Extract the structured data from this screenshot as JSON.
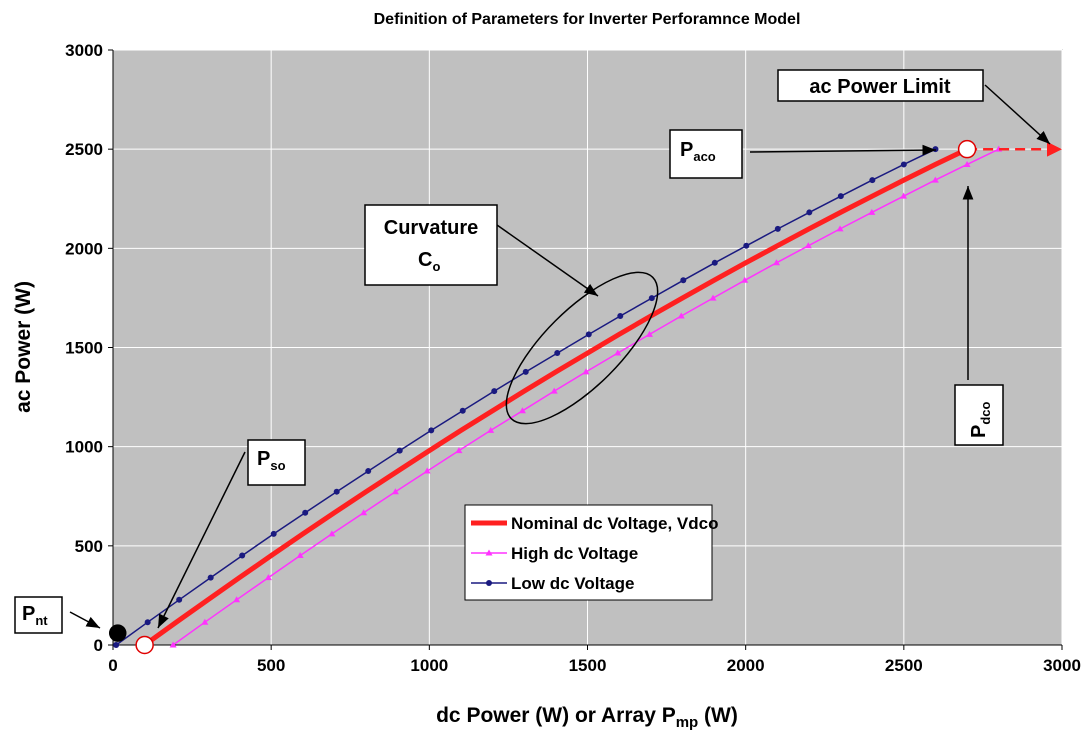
{
  "chart_data": {
    "type": "line",
    "title": "Definition of Parameters for Inverter Perforamnce Model",
    "x_label": {
      "main": "dc Power (W) or Array P",
      "sub": "mp",
      "tail": " (W)"
    },
    "y_label": "ac Power (W)",
    "xlim": [
      0,
      3000
    ],
    "ylim": [
      0,
      3000
    ],
    "xticks": [
      0,
      500,
      1000,
      1500,
      2000,
      2500,
      3000
    ],
    "yticks": [
      0,
      500,
      1000,
      1500,
      2000,
      2500,
      3000
    ],
    "grid": true,
    "background": "#c0c0c0",
    "legend_position": "lower center",
    "series": [
      {
        "name": "Nominal dc Voltage, Vdco",
        "color": "#ff2020",
        "marker": "none",
        "x": [
          100,
          200,
          300,
          400,
          500,
          600,
          700,
          800,
          900,
          1000,
          1100,
          1200,
          1300,
          1400,
          1500,
          1600,
          1700,
          1800,
          1900,
          2000,
          2100,
          2200,
          2300,
          2400,
          2500,
          2600,
          2700
        ],
        "values": [
          0,
          115,
          228,
          340,
          451,
          560,
          667,
          773,
          877,
          980,
          1082,
          1181,
          1280,
          1377,
          1472,
          1566,
          1659,
          1749,
          1839,
          1927,
          2013,
          2098,
          2181,
          2263,
          2344,
          2423,
          2500
        ]
      },
      {
        "name": "High dc Voltage",
        "color": "#ff33ff",
        "marker": "triangle",
        "x": [
          190,
          290.4,
          390.8,
          491.2,
          591.6,
          692,
          792.4,
          892.8,
          993.2,
          1093.6,
          1194,
          1294.4,
          1394.8,
          1495.2,
          1595.6,
          1696,
          1796.4,
          1896.8,
          1997.2,
          2097.6,
          2198,
          2298.4,
          2398.8,
          2499.2,
          2599.6,
          2700,
          2800
        ],
        "values": [
          0,
          115,
          228,
          340,
          451,
          560,
          667,
          773,
          877,
          980,
          1082,
          1181,
          1280,
          1377,
          1472,
          1566,
          1659,
          1749,
          1839,
          1927,
          2013,
          2098,
          2181,
          2263,
          2344,
          2423,
          2500
        ]
      },
      {
        "name": "Low dc Voltage",
        "color": "#1a1a80",
        "marker": "circle",
        "x": [
          10,
          109.6,
          209.2,
          308.8,
          408.4,
          508,
          607.6,
          707.2,
          806.8,
          906.4,
          1006,
          1105.6,
          1205.2,
          1304.8,
          1404.4,
          1504,
          1603.6,
          1703.2,
          1802.8,
          1902.4,
          2002,
          2101.6,
          2201.2,
          2300.8,
          2400.4,
          2500,
          2600
        ],
        "values": [
          0,
          115,
          228,
          340,
          451,
          560,
          667,
          773,
          877,
          980,
          1082,
          1181,
          1280,
          1377,
          1472,
          1566,
          1659,
          1749,
          1839,
          1927,
          2013,
          2098,
          2181,
          2263,
          2344,
          2423,
          2500
        ]
      }
    ],
    "limit_line": {
      "x": [
        2700,
        3000
      ],
      "values": [
        2500,
        2500
      ],
      "color": "#ff2020"
    },
    "points": [
      {
        "x": 15,
        "y": 60,
        "style": "filled"
      },
      {
        "x": 100,
        "y": 0,
        "style": "open"
      },
      {
        "x": 2700,
        "y": 2500,
        "style": "open"
      }
    ],
    "annotations": {
      "pnt": {
        "main": "P",
        "sub": "nt"
      },
      "pso": {
        "main": "P",
        "sub": "so"
      },
      "curvature": {
        "line1": "Curvature",
        "main": "C",
        "sub": "o"
      },
      "paco": {
        "main": "P",
        "sub": "aco"
      },
      "limit": "ac Power Limit",
      "pdco": {
        "main": "P",
        "sub": "dco"
      }
    }
  }
}
